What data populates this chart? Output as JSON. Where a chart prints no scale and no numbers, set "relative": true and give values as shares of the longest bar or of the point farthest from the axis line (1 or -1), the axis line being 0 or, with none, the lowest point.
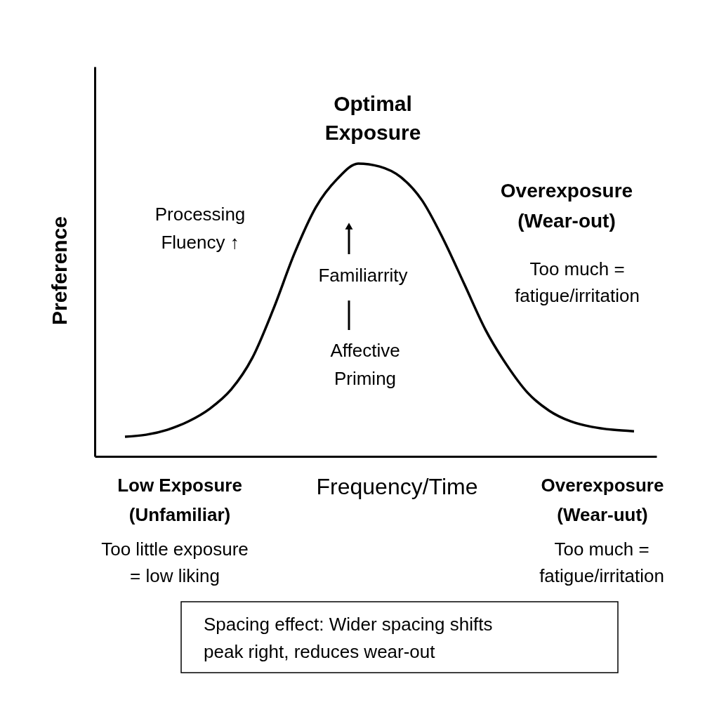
{
  "chart_data": {
    "type": "line",
    "relative": true,
    "tick_labels": false,
    "xlabel": "Frequency/Time",
    "ylabel": "Preference",
    "categories": [
      null,
      null,
      null,
      null,
      null,
      null,
      null,
      null,
      null,
      null,
      null,
      null,
      null,
      null,
      null,
      null,
      null,
      null,
      null,
      null,
      null,
      null,
      null,
      null,
      null
    ],
    "values": [
      0.067,
      0.074,
      0.091,
      0.12,
      0.163,
      0.228,
      0.336,
      0.504,
      0.695,
      0.851,
      0.947,
      1.0,
      0.99,
      0.954,
      0.875,
      0.743,
      0.588,
      0.432,
      0.312,
      0.216,
      0.156,
      0.12,
      0.101,
      0.091,
      0.086
    ],
    "color": "#000000",
    "annotations": [
      "Optimal\nExposure",
      "Overexposure\n(Wear-out)",
      "Processing\nFluency ↑",
      "Familiarrity",
      "Affective\nPriming",
      "Too much =\nfatigue/irritation",
      "Low Exposure\n(Unfamiliar)",
      "Too little exposure\n= low liking",
      "Overexposure\n(Wear-uut)",
      "Too much =\nfatigue/irritation",
      "Spacing effect: Wider spacing shifts\npeak right, reduces wear-out"
    ]
  }
}
